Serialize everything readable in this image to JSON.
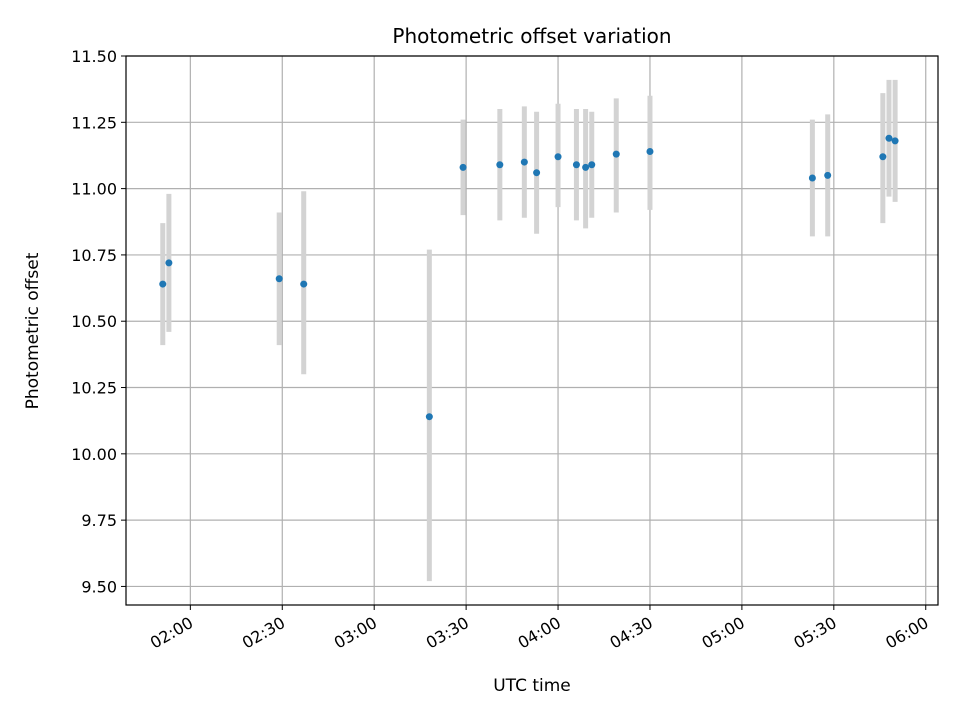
{
  "chart_data": {
    "type": "scatter",
    "title": "Photometric offset variation",
    "xlabel": "UTC time",
    "ylabel": "Photometric offset",
    "xlim": [
      "01:39",
      "06:04"
    ],
    "ylim": [
      9.43,
      11.5
    ],
    "x_tick_labels": [
      "02:00",
      "02:30",
      "03:00",
      "03:30",
      "04:00",
      "04:30",
      "05:00",
      "05:30",
      "06:00"
    ],
    "y_tick_labels": [
      "9.50",
      "9.75",
      "10.00",
      "10.25",
      "10.50",
      "10.75",
      "11.00",
      "11.25",
      "11.50"
    ],
    "grid": true,
    "colors": {
      "points": "#1f77b4",
      "error_bars": "#d3d3d3",
      "grid": "#b0b0b0"
    },
    "series": [
      {
        "x": [
          "01:51",
          "01:53",
          "02:29",
          "02:37",
          "03:18",
          "03:29",
          "03:41",
          "03:49",
          "03:53",
          "04:00",
          "04:06",
          "04:09",
          "04:11",
          "04:19",
          "04:30",
          "05:23",
          "05:28",
          "05:46",
          "05:48",
          "05:50"
        ],
        "y": [
          10.64,
          10.72,
          10.66,
          10.64,
          10.14,
          11.08,
          11.09,
          11.1,
          11.06,
          11.12,
          11.09,
          11.08,
          11.09,
          11.13,
          11.14,
          11.04,
          11.05,
          11.12,
          11.19,
          11.18
        ],
        "y_low": [
          10.41,
          10.46,
          10.41,
          10.3,
          9.52,
          10.9,
          10.88,
          10.89,
          10.83,
          10.93,
          10.88,
          10.85,
          10.89,
          10.91,
          10.92,
          10.82,
          10.82,
          10.87,
          10.97,
          10.95
        ],
        "y_high": [
          10.87,
          10.98,
          10.91,
          10.99,
          10.77,
          11.26,
          11.3,
          11.31,
          11.29,
          11.32,
          11.3,
          11.3,
          11.29,
          11.34,
          11.35,
          11.26,
          11.28,
          11.36,
          11.41,
          11.41
        ]
      }
    ]
  }
}
